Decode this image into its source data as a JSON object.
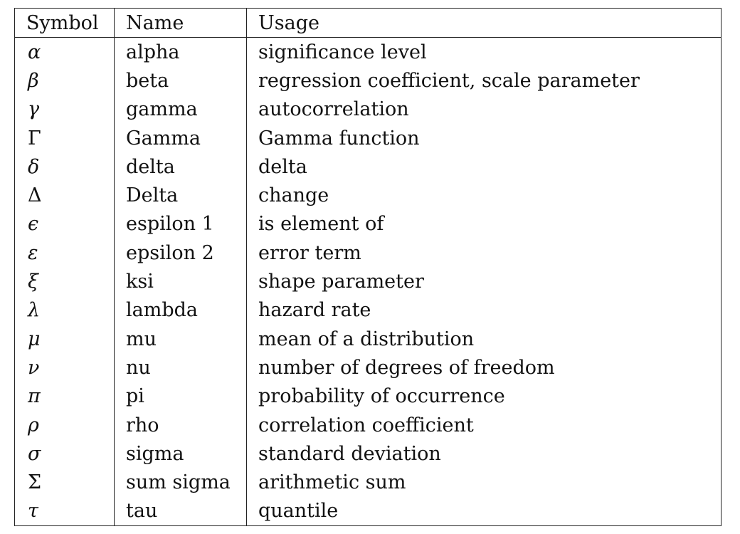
{
  "table": {
    "headers": {
      "symbol": "Symbol",
      "name": "Name",
      "usage": "Usage"
    },
    "rows": [
      {
        "symbol": "α",
        "name": "alpha",
        "usage": "significance level",
        "upright": false
      },
      {
        "symbol": "β",
        "name": "beta",
        "usage": "regression coefficient, scale parameter",
        "upright": false
      },
      {
        "symbol": "γ",
        "name": "gamma",
        "usage": "autocorrelation",
        "upright": false
      },
      {
        "symbol": "Γ",
        "name": "Gamma",
        "usage": "Gamma function",
        "upright": true
      },
      {
        "symbol": "δ",
        "name": "delta",
        "usage": "delta",
        "upright": false
      },
      {
        "symbol": "Δ",
        "name": "Delta",
        "usage": "change",
        "upright": true
      },
      {
        "symbol": "ϵ",
        "name": "espilon 1",
        "usage": "is element of",
        "upright": false
      },
      {
        "symbol": "ε",
        "name": "epsilon 2",
        "usage": "error term",
        "upright": false
      },
      {
        "symbol": "ξ",
        "name": "ksi",
        "usage": "shape parameter",
        "upright": false
      },
      {
        "symbol": "λ",
        "name": "lambda",
        "usage": "hazard rate",
        "upright": false
      },
      {
        "symbol": "μ",
        "name": "mu",
        "usage": "mean of a distribution",
        "upright": false
      },
      {
        "symbol": "ν",
        "name": "nu",
        "usage": "number of degrees of freedom",
        "upright": false
      },
      {
        "symbol": "π",
        "name": "pi",
        "usage": "probability of occurrence",
        "upright": false
      },
      {
        "symbol": "ρ",
        "name": "rho",
        "usage": "correlation coefficient",
        "upright": false
      },
      {
        "symbol": "σ",
        "name": "sigma",
        "usage": "standard deviation",
        "upright": false
      },
      {
        "symbol": "Σ",
        "name": "sum sigma",
        "usage": "arithmetic sum",
        "upright": true
      },
      {
        "symbol": "τ",
        "name": "tau",
        "usage": "quantile",
        "upright": false
      }
    ]
  }
}
